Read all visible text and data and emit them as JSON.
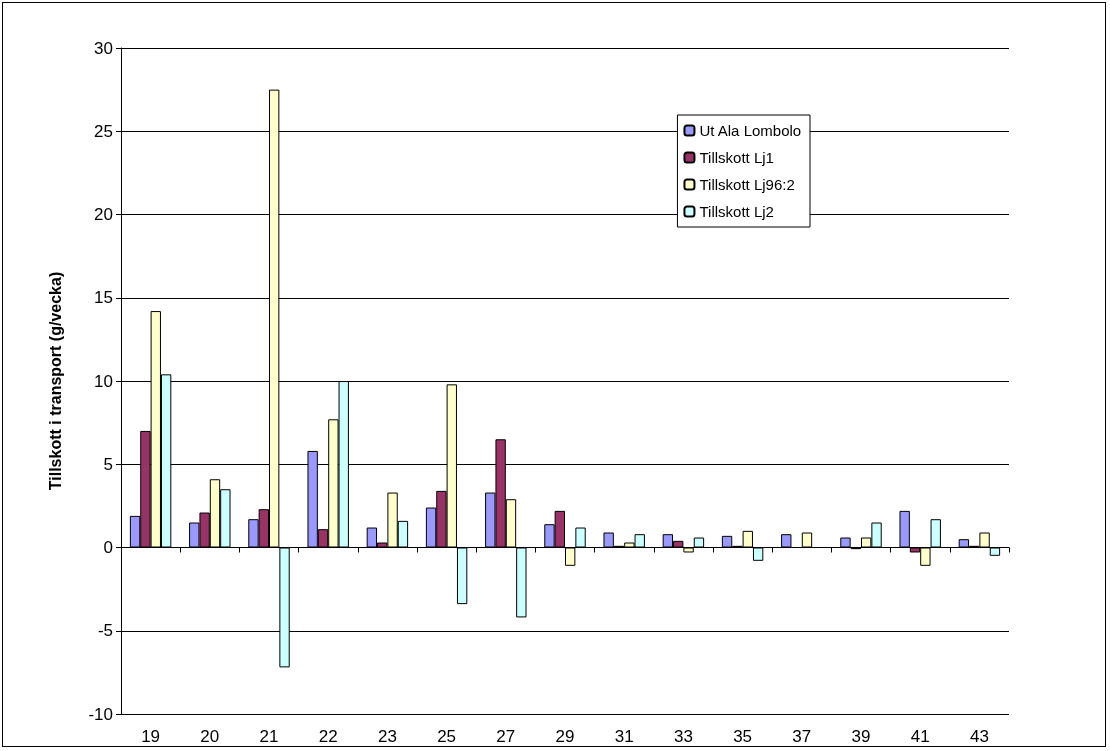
{
  "chart_data": {
    "type": "bar",
    "ylabel": "Tillskott i transport (g/vecka)",
    "categories": [
      "19",
      "20",
      "21",
      "22",
      "23",
      "25",
      "27",
      "29",
      "31",
      "33",
      "35",
      "37",
      "39",
      "41",
      "43"
    ],
    "series": [
      {
        "name": "Ut Ala Lombolo",
        "color": "#9999ff",
        "values": [
          1.9,
          1.5,
          1.7,
          5.8,
          1.2,
          2.4,
          3.3,
          1.4,
          0.9,
          0.8,
          0.7,
          0.8,
          0.6,
          2.2,
          0.5
        ]
      },
      {
        "name": "Tillskott Lj1",
        "color": "#993366",
        "values": [
          7.0,
          2.1,
          2.3,
          1.1,
          0.3,
          3.4,
          6.5,
          2.2,
          0.1,
          0.4,
          0.1,
          null,
          -0.1,
          -0.3,
          0.1
        ]
      },
      {
        "name": "Tillskott Lj96:2",
        "color": "#ffffcc",
        "values": [
          14.2,
          4.1,
          27.5,
          7.7,
          3.3,
          9.8,
          2.9,
          -1.1,
          0.3,
          -0.3,
          1.0,
          0.9,
          0.6,
          -1.1,
          0.9
        ]
      },
      {
        "name": "Tillskott Lj2",
        "color": "#ccffff",
        "values": [
          10.4,
          3.5,
          -7.2,
          10.0,
          1.6,
          -3.4,
          -4.2,
          1.2,
          0.8,
          0.6,
          -0.8,
          null,
          1.5,
          1.7,
          -0.5
        ]
      }
    ],
    "ylim": [
      -10,
      30
    ],
    "yticks": [
      -10,
      -5,
      0,
      5,
      10,
      15,
      20,
      25,
      30
    ],
    "grid": "y",
    "legend": "top right"
  }
}
